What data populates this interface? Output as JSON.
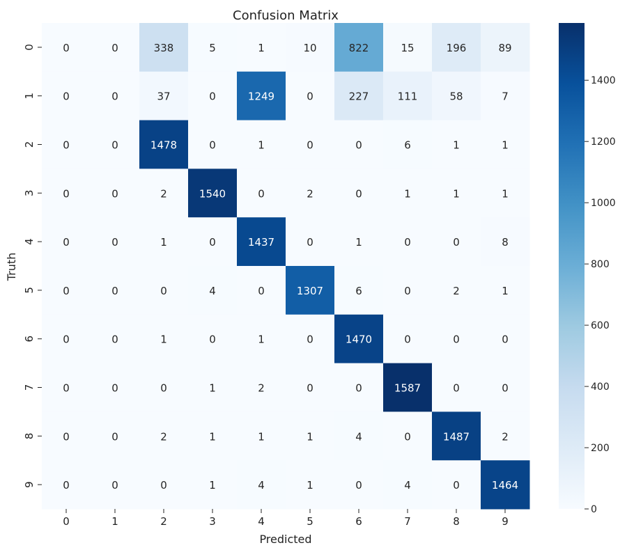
{
  "chart_data": {
    "type": "heatmap",
    "title": "Confusion Matrix",
    "xlabel": "Predicted",
    "ylabel": "Truth",
    "x_categories": [
      "0",
      "1",
      "2",
      "3",
      "4",
      "5",
      "6",
      "7",
      "8",
      "9"
    ],
    "y_categories": [
      "0",
      "1",
      "2",
      "3",
      "4",
      "5",
      "6",
      "7",
      "8",
      "9"
    ],
    "values": [
      [
        0,
        0,
        338,
        5,
        1,
        10,
        822,
        15,
        196,
        89
      ],
      [
        0,
        0,
        37,
        0,
        1249,
        0,
        227,
        111,
        58,
        7
      ],
      [
        0,
        0,
        1478,
        0,
        1,
        0,
        0,
        6,
        1,
        1
      ],
      [
        0,
        0,
        2,
        1540,
        0,
        2,
        0,
        1,
        1,
        1
      ],
      [
        0,
        0,
        1,
        0,
        1437,
        0,
        1,
        0,
        0,
        8
      ],
      [
        0,
        0,
        0,
        4,
        0,
        1307,
        6,
        0,
        2,
        1
      ],
      [
        0,
        0,
        1,
        0,
        1,
        0,
        1470,
        0,
        0,
        0
      ],
      [
        0,
        0,
        0,
        1,
        2,
        0,
        0,
        1587,
        0,
        0
      ],
      [
        0,
        0,
        2,
        1,
        1,
        1,
        4,
        0,
        1487,
        2
      ],
      [
        0,
        0,
        0,
        1,
        4,
        1,
        0,
        4,
        0,
        1464
      ]
    ],
    "colorbar": {
      "range": [
        0,
        1587
      ],
      "ticks": [
        0,
        200,
        400,
        600,
        800,
        1000,
        1200,
        1400
      ],
      "colormap": "Blues"
    }
  }
}
